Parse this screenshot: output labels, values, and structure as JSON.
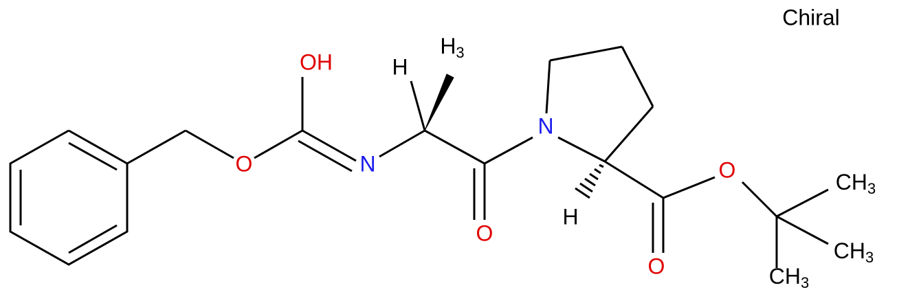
{
  "label": "Chiral",
  "atoms": [
    {
      "label": "OH"
    },
    {
      "label": "O"
    },
    {
      "label": "N"
    },
    {
      "label": "H"
    },
    {
      "label": "H",
      "sub": "3"
    },
    {
      "label": "O"
    },
    {
      "label": "N"
    },
    {
      "label": "H"
    },
    {
      "label": "O"
    },
    {
      "label": "O"
    },
    {
      "label": "CH",
      "sub": "3"
    },
    {
      "label": "CH",
      "sub": "3"
    },
    {
      "label": "CH",
      "sub": "3"
    }
  ]
}
